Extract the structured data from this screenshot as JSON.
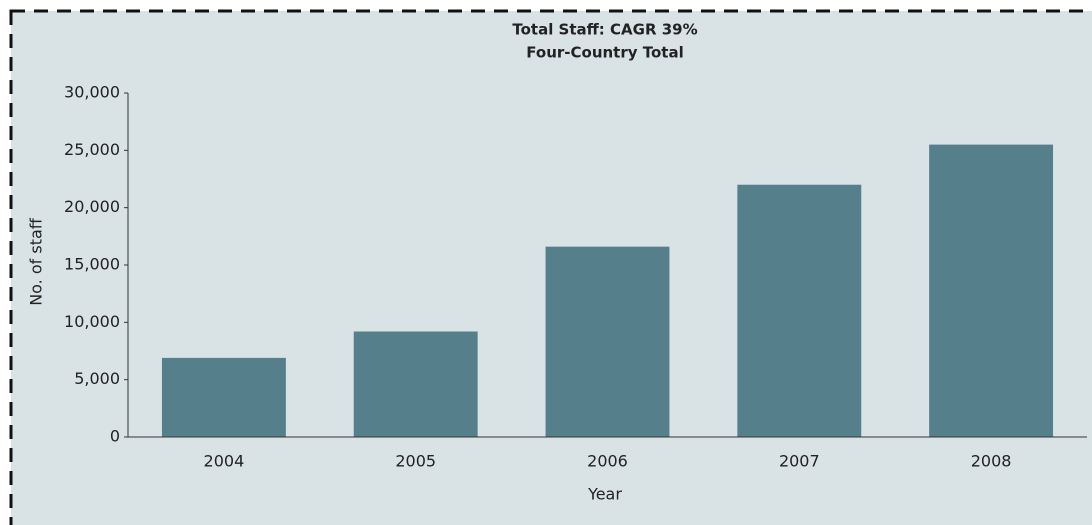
{
  "chart_data": {
    "type": "bar",
    "title": "Total Staff: CAGR 39%",
    "subtitle": "Four-Country Total",
    "x_label": "Year",
    "y_label": "No. of staff",
    "categories": [
      "2004",
      "2005",
      "2006",
      "2007",
      "2008"
    ],
    "values": [
      6900,
      9200,
      16600,
      22000,
      25500
    ],
    "color": "#567f8c",
    "ylim": [
      0,
      30000
    ],
    "yticks": [
      0,
      {
        "value": 5000,
        "label": "5,000"
      },
      {
        "value": 10000,
        "label": "10,000"
      },
      {
        "value": 15000,
        "label": "15,000"
      },
      {
        "value": 20000,
        "label": "20,000"
      },
      {
        "value": 25000,
        "label": "25,000"
      },
      {
        "value": 30000,
        "label": "30,000"
      }
    ],
    "grid": false
  }
}
